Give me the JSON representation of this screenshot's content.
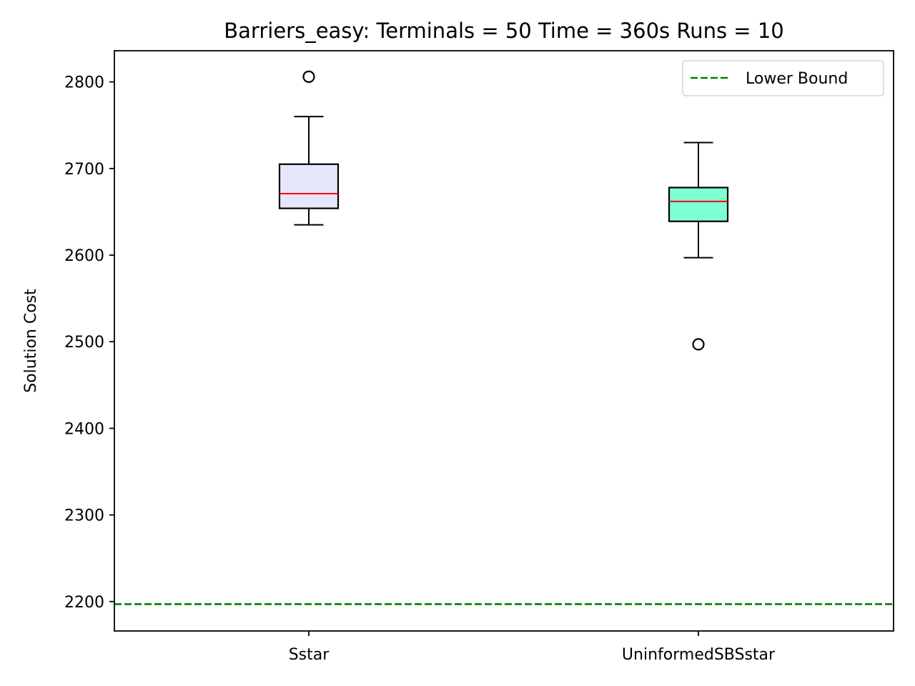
{
  "chart_data": {
    "type": "box",
    "title": "Barriers_easy:  Terminals = 50  Time = 360s  Runs = 10",
    "xlabel": "",
    "ylabel": "Solution Cost",
    "categories": [
      "Sstar",
      "UninformedSBSstar"
    ],
    "ylim": [
      2166,
      2836
    ],
    "yticks": [
      "2200",
      "2300",
      "2400",
      "2500",
      "2600",
      "2700",
      "2800"
    ],
    "grid": false,
    "legend_position": "top-right",
    "boxes": [
      {
        "category": "Sstar",
        "whisker_low": 2635,
        "q1": 2654,
        "median": 2671,
        "q3": 2705,
        "whisker_high": 2760,
        "outliers": [
          2806
        ],
        "fill_color": "#e6e6fa"
      },
      {
        "category": "UninformedSBSstar",
        "whisker_low": 2597,
        "q1": 2639,
        "median": 2662,
        "q3": 2678,
        "whisker_high": 2730,
        "outliers": [
          2497
        ],
        "fill_color": "#7fffd4"
      }
    ],
    "reference_line": {
      "name": "Lower Bound",
      "value": 2197,
      "color": "#008000",
      "style": "dashed"
    },
    "median_color": "#ff0000"
  }
}
